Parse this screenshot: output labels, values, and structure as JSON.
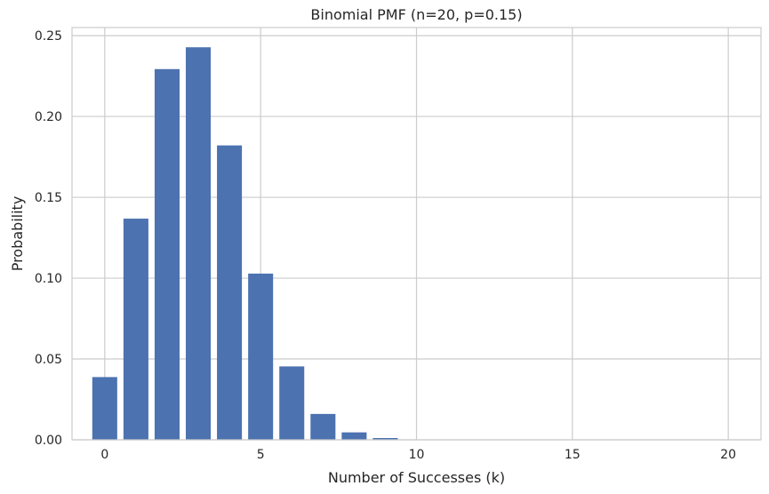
{
  "chart_data": {
    "type": "bar",
    "title": "Binomial PMF (n=20, p=0.15)",
    "xlabel": "Number of Successes (k)",
    "ylabel": "Probability",
    "x": [
      0,
      1,
      2,
      3,
      4,
      5,
      6,
      7,
      8,
      9,
      10,
      11,
      12,
      13,
      14,
      15,
      16,
      17,
      18,
      19,
      20
    ],
    "values": [
      0.0388,
      0.1368,
      0.2293,
      0.2428,
      0.1821,
      0.1028,
      0.0454,
      0.016,
      0.0046,
      0.0011,
      0.0002,
      0.0,
      0.0,
      0.0,
      0.0,
      0.0,
      0.0,
      0.0,
      0.0,
      0.0,
      0.0
    ],
    "xlim": [
      -1.05,
      21.05
    ],
    "ylim": [
      0,
      0.255
    ],
    "xticks": [
      0,
      5,
      10,
      15,
      20
    ],
    "xtick_labels": [
      "0",
      "5",
      "10",
      "15",
      "20"
    ],
    "yticks": [
      0.0,
      0.05,
      0.1,
      0.15,
      0.2,
      0.25
    ],
    "ytick_labels": [
      "0.00",
      "0.05",
      "0.10",
      "0.15",
      "0.20",
      "0.25"
    ],
    "grid": true,
    "bar_color": "#4c72b0",
    "grid_color": "#cccccc"
  }
}
